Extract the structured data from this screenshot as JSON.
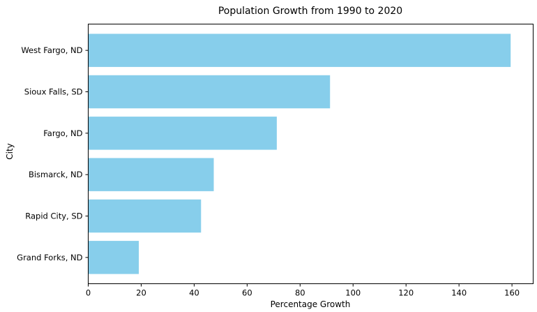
{
  "chart_data": {
    "type": "bar",
    "orientation": "horizontal",
    "title": "Population Growth from 1990 to 2020",
    "xlabel": "Percentage Growth",
    "ylabel": "City",
    "categories": [
      "West Fargo, ND",
      "Sioux Falls, SD",
      "Fargo, ND",
      "Bismarck, ND",
      "Rapid City, SD",
      "Grand Forks, ND"
    ],
    "values": [
      159.5,
      91.3,
      71.2,
      47.4,
      42.6,
      19.1
    ],
    "xlim": [
      0,
      168
    ],
    "xticks": [
      0,
      20,
      40,
      60,
      80,
      100,
      120,
      140,
      160
    ],
    "bar_color": "#87ceeb",
    "grid": false,
    "legend": "none"
  }
}
